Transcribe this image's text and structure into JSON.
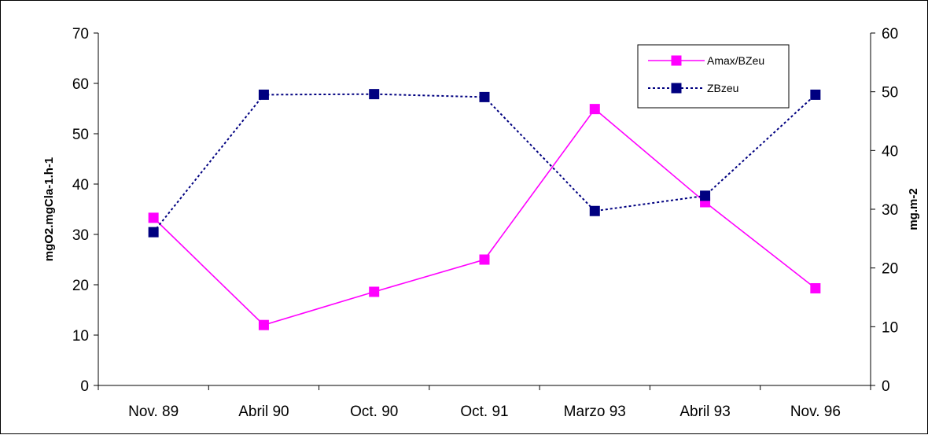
{
  "chart_data": {
    "type": "line",
    "categories": [
      "Nov. 89",
      "Abril 90",
      "Oct. 90",
      "Oct. 91",
      "Marzo 93",
      "Abril 93",
      "Nov. 96"
    ],
    "title": "",
    "xlabel": "",
    "ylabel": "mgO2.mgCla-1.h-1",
    "ylabel_right": "mg.m-2",
    "ylim": [
      0,
      70
    ],
    "yticks": [
      0,
      10,
      20,
      30,
      40,
      50,
      60,
      70
    ],
    "ylim_right": [
      0,
      60
    ],
    "yticks_right": [
      0,
      10,
      20,
      30,
      40,
      50,
      60
    ],
    "grid": false,
    "legend_position": "top-right",
    "series": [
      {
        "name": "Amax/BZeu",
        "axis": "left",
        "color": "#ff00ff",
        "dash": "solid",
        "values": [
          33.3,
          12.0,
          18.6,
          25.0,
          54.9,
          36.4,
          19.3
        ]
      },
      {
        "name": "ZBzeu",
        "axis": "right",
        "color": "#000080",
        "dash": "dotted",
        "values": [
          26.1,
          49.5,
          49.6,
          49.1,
          29.7,
          32.3,
          49.5
        ]
      }
    ]
  }
}
